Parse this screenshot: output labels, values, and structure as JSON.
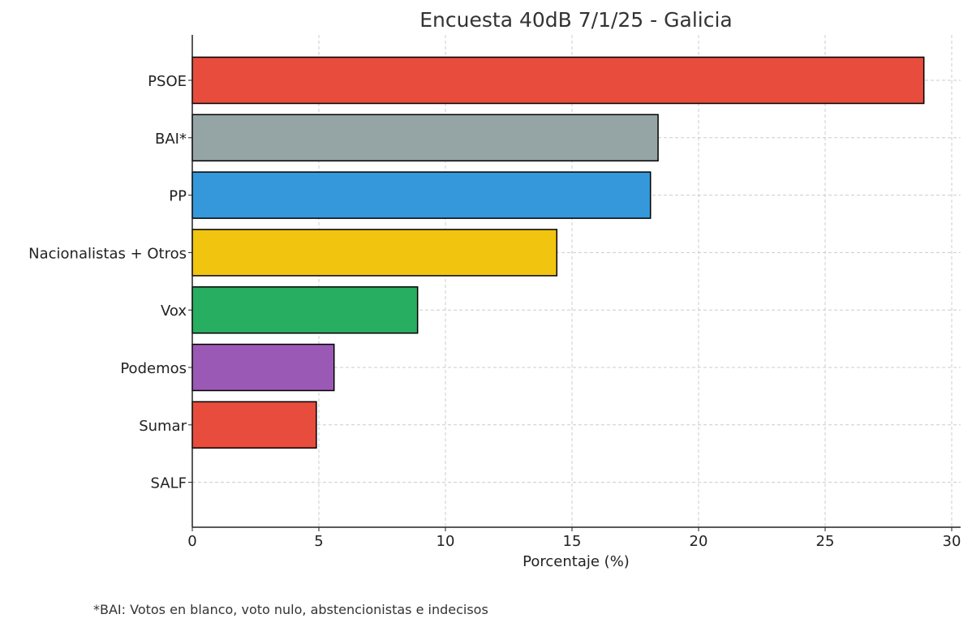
{
  "chart_data": {
    "type": "bar",
    "orientation": "horizontal",
    "title": "Encuesta 40dB 7/1/25 - Galicia",
    "xlabel": "Porcentaje (%)",
    "ylabel": "",
    "categories": [
      "PSOE",
      "BAI*",
      "PP",
      "Nacionalistas + Otros",
      "Vox",
      "Podemos",
      "Sumar",
      "SALF"
    ],
    "values": [
      28.9,
      18.4,
      18.1,
      14.4,
      8.9,
      5.6,
      4.9,
      0
    ],
    "colors": [
      "#e74c3c",
      "#95a5a6",
      "#3498db",
      "#f1c40f",
      "#27ae60",
      "#9b59b6",
      "#e74c3c",
      "#e74c3c"
    ],
    "xlim": [
      0,
      30.35
    ],
    "xticks": [
      "0",
      "5",
      "10",
      "15",
      "20",
      "25",
      "30"
    ],
    "grid": true,
    "footnote": "*BAI: Votos en blanco, voto nulo, abstencionistas e indecisos"
  }
}
